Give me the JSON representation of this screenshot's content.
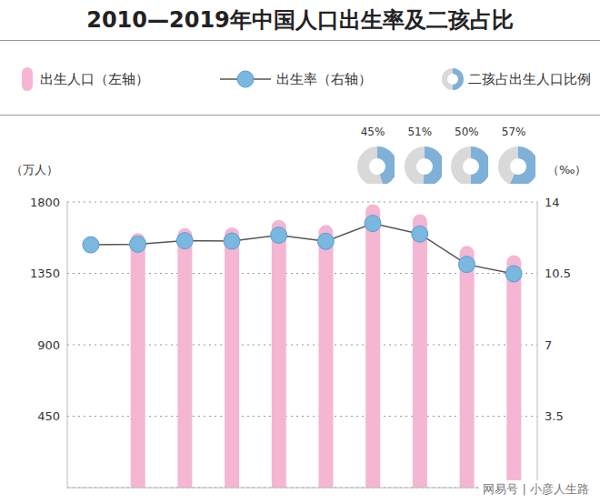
{
  "chart_data": {
    "type": "bar",
    "title": "2010—2019年中国人口出生率及二孩占比",
    "ylabel": "（万人）",
    "y2label": "（‰）",
    "categories": [
      null,
      null,
      null,
      null,
      null,
      null,
      null,
      null,
      null,
      null
    ],
    "series": [
      {
        "name": "出生人口（左轴）",
        "type": "bar",
        "color": "#f4b6d2",
        "values": [
          null,
          1604,
          1635,
          1640,
          1687,
          1655,
          1786,
          1723,
          1523,
          1465
        ]
      },
      {
        "name": "出生率（右轴）",
        "type": "line",
        "axis": "y2",
        "color": "#7ab8e0",
        "marker": "circle",
        "values": [
          11.9,
          11.93,
          12.1,
          12.08,
          12.37,
          12.07,
          12.95,
          12.43,
          10.94,
          10.48
        ]
      },
      {
        "name": "二孩占出生人口比例",
        "type": "donut",
        "color": "#7fb0d8",
        "values": [
          null,
          null,
          null,
          null,
          null,
          null,
          45,
          51,
          50,
          57
        ],
        "value_labels": [
          null,
          null,
          null,
          null,
          null,
          null,
          "45%",
          "51%",
          "50%",
          "57%"
        ]
      }
    ],
    "ylim": [
      0,
      1800
    ],
    "yticks": [
      450,
      900,
      1350,
      1800
    ],
    "y2lim": [
      0,
      14
    ],
    "y2ticks": [
      3.5,
      7,
      10.5,
      14
    ],
    "grid": true,
    "legend": "top",
    "tick_labels": "y",
    "annotation": "网易号 | 小彦人生路"
  }
}
